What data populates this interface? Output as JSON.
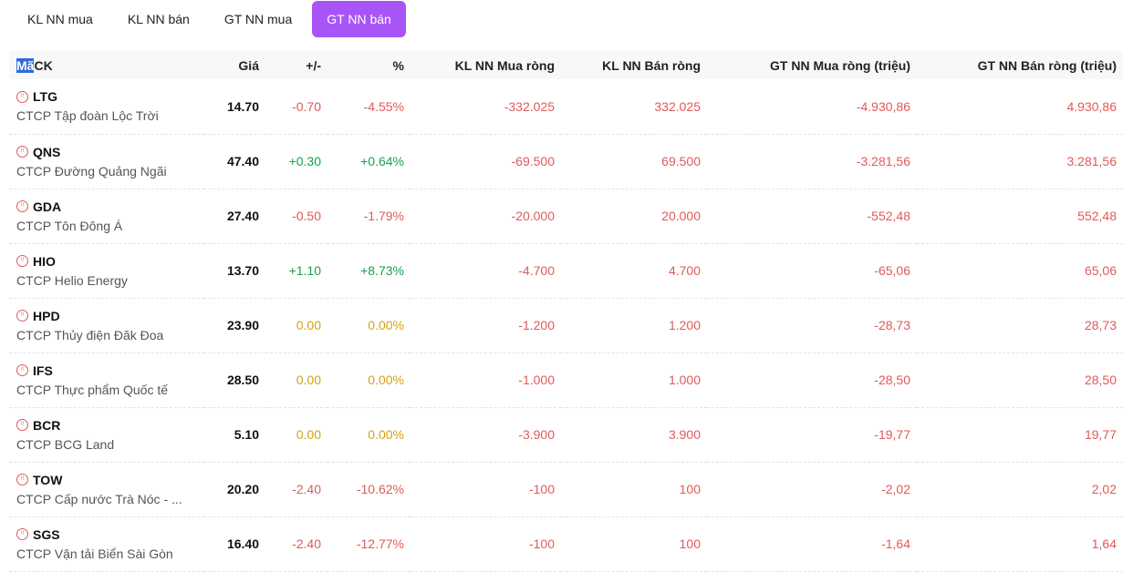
{
  "tabs": [
    {
      "label": "KL NN mua",
      "active": false
    },
    {
      "label": "KL NN bán",
      "active": false
    },
    {
      "label": "GT NN mua",
      "active": false
    },
    {
      "label": "GT NN bán",
      "active": true
    }
  ],
  "colors": {
    "up": "#16a34a",
    "down": "#e05a5a",
    "ref": "#d4a215",
    "accent": "#a855f7"
  },
  "table": {
    "headers": {
      "code_sel": "Mã",
      "code_rest": "CK",
      "price": "Giá",
      "change": "+/-",
      "percent": "%",
      "kl_buy": "KL NN Mua ròng",
      "kl_sell": "KL NN Bán ròng",
      "gt_buy": "GT NN Mua ròng (triệu)",
      "gt_sell": "GT NN Bán ròng (triệu)"
    },
    "rows": [
      {
        "symbol": "LTG",
        "name": "CTCP Tập đoàn Lộc Trời",
        "price": "14.70",
        "change": "-0.70",
        "percent": "-4.55%",
        "trend": "down",
        "kl_buy": "-332.025",
        "kl_sell": "332.025",
        "gt_buy": "-4.930,86",
        "gt_sell": "4.930,86"
      },
      {
        "symbol": "QNS",
        "name": "CTCP Đường Quảng Ngãi",
        "price": "47.40",
        "change": "+0.30",
        "percent": "+0.64%",
        "trend": "up",
        "kl_buy": "-69.500",
        "kl_sell": "69.500",
        "gt_buy": "-3.281,56",
        "gt_sell": "3.281,56"
      },
      {
        "symbol": "GDA",
        "name": "CTCP Tôn Đông Á",
        "price": "27.40",
        "change": "-0.50",
        "percent": "-1.79%",
        "trend": "down",
        "kl_buy": "-20.000",
        "kl_sell": "20.000",
        "gt_buy": "-552,48",
        "gt_sell": "552,48"
      },
      {
        "symbol": "HIO",
        "name": "CTCP Helio Energy",
        "price": "13.70",
        "change": "+1.10",
        "percent": "+8.73%",
        "trend": "up",
        "kl_buy": "-4.700",
        "kl_sell": "4.700",
        "gt_buy": "-65,06",
        "gt_sell": "65,06"
      },
      {
        "symbol": "HPD",
        "name": "CTCP Thủy điện Đăk Đoa",
        "price": "23.90",
        "change": "0.00",
        "percent": "0.00%",
        "trend": "ref",
        "kl_buy": "-1.200",
        "kl_sell": "1.200",
        "gt_buy": "-28,73",
        "gt_sell": "28,73"
      },
      {
        "symbol": "IFS",
        "name": "CTCP Thực phẩm Quốc tế",
        "price": "28.50",
        "change": "0.00",
        "percent": "0.00%",
        "trend": "ref",
        "kl_buy": "-1.000",
        "kl_sell": "1.000",
        "gt_buy": "-28,50",
        "gt_sell": "28,50"
      },
      {
        "symbol": "BCR",
        "name": "CTCP BCG Land",
        "price": "5.10",
        "change": "0.00",
        "percent": "0.00%",
        "trend": "ref",
        "kl_buy": "-3.900",
        "kl_sell": "3.900",
        "gt_buy": "-19,77",
        "gt_sell": "19,77"
      },
      {
        "symbol": "TOW",
        "name": "CTCP Cấp nước Trà Nóc - ...",
        "price": "20.20",
        "change": "-2.40",
        "percent": "-10.62%",
        "trend": "down",
        "kl_buy": "-100",
        "kl_sell": "100",
        "gt_buy": "-2,02",
        "gt_sell": "2,02"
      },
      {
        "symbol": "SGS",
        "name": "CTCP Vận tải Biển Sài Gòn",
        "price": "16.40",
        "change": "-2.40",
        "percent": "-12.77%",
        "trend": "down",
        "kl_buy": "-100",
        "kl_sell": "100",
        "gt_buy": "-1,64",
        "gt_sell": "1,64"
      }
    ]
  }
}
